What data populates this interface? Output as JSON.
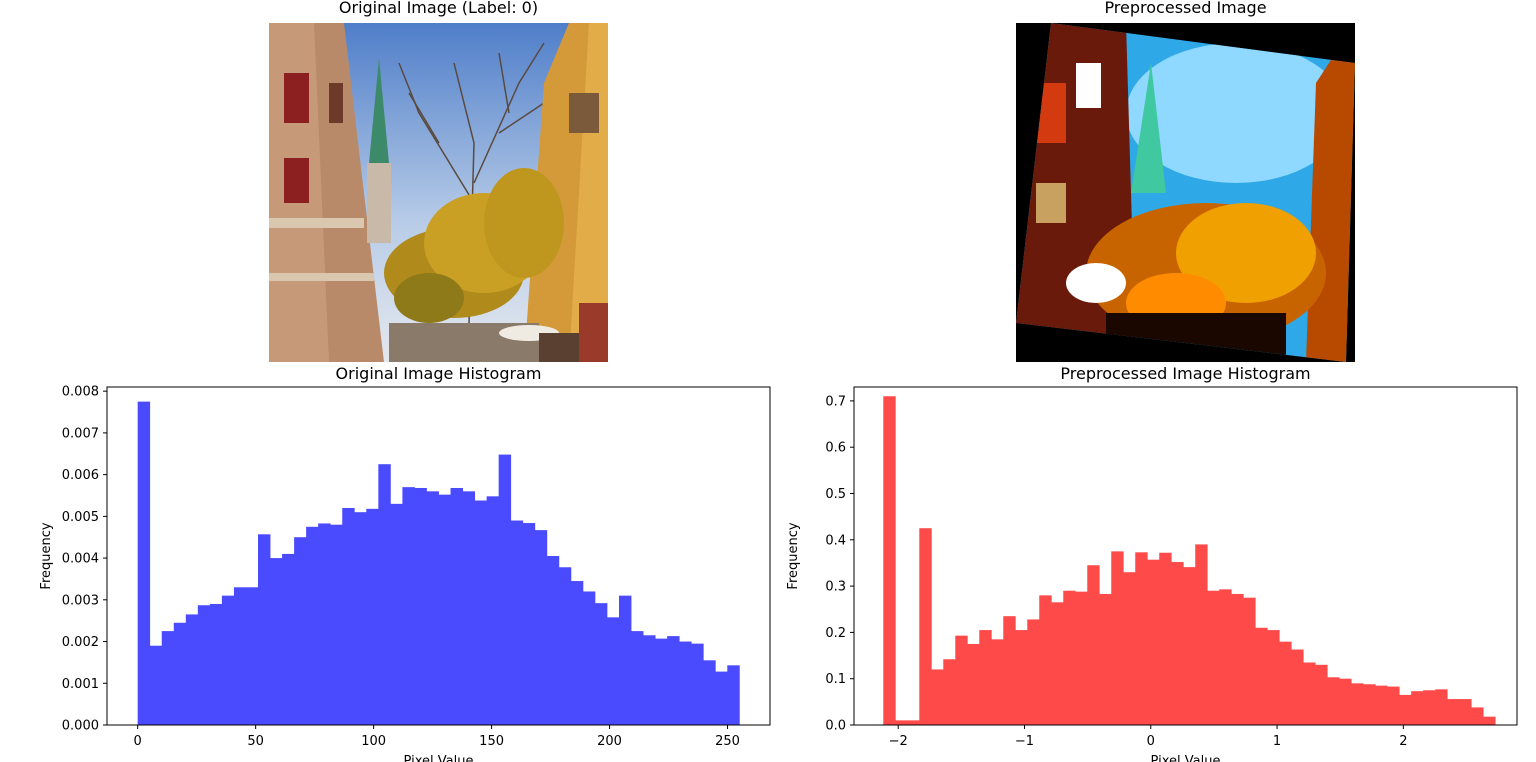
{
  "panels": {
    "original_title": "Original Image (Label: 0)",
    "preprocessed_title": "Preprocessed Image"
  },
  "colors": {
    "original_bars": "#4a4aff",
    "preprocessed_bars": "#ff4a4a"
  },
  "chart_data": [
    {
      "type": "bar",
      "title": "Original Image Histogram",
      "xlabel": "Pixel Value",
      "ylabel": "Frequency",
      "xlim": [
        -13,
        268
      ],
      "ylim": [
        0,
        0.0081
      ],
      "xticks": [
        0,
        50,
        100,
        150,
        200,
        250
      ],
      "xtick_labels": [
        "0",
        "50",
        "100",
        "150",
        "200",
        "250"
      ],
      "yticks": [
        0,
        0.001,
        0.002,
        0.003,
        0.004,
        0.005,
        0.006,
        0.007,
        0.008
      ],
      "ytick_labels": [
        "0.000",
        "0.001",
        "0.002",
        "0.003",
        "0.004",
        "0.005",
        "0.006",
        "0.007",
        "0.008"
      ],
      "bin_start": 0,
      "bin_width": 5.1,
      "values": [
        0.00775,
        0.0019,
        0.00225,
        0.00245,
        0.00265,
        0.00287,
        0.0029,
        0.0031,
        0.0033,
        0.0033,
        0.00457,
        0.004,
        0.0041,
        0.0045,
        0.00475,
        0.00483,
        0.0048,
        0.0052,
        0.0051,
        0.00518,
        0.00625,
        0.0053,
        0.0057,
        0.00568,
        0.0056,
        0.00552,
        0.00568,
        0.0056,
        0.00538,
        0.00548,
        0.00648,
        0.0049,
        0.00484,
        0.00467,
        0.00405,
        0.00378,
        0.00345,
        0.0032,
        0.00292,
        0.00258,
        0.0031,
        0.00225,
        0.00215,
        0.00207,
        0.00213,
        0.002,
        0.00195,
        0.00155,
        0.00128,
        0.00143
      ],
      "grid": false,
      "legend": "none"
    },
    {
      "type": "bar",
      "title": "Preprocessed Image Histogram",
      "xlabel": "Pixel Value",
      "ylabel": "Frequency",
      "xlim": [
        -2.35,
        2.9
      ],
      "ylim": [
        0,
        0.73
      ],
      "xticks": [
        -2,
        -1,
        0,
        1,
        2
      ],
      "xtick_labels": [
        "−2",
        "−1",
        "0",
        "1",
        "2"
      ],
      "yticks": [
        0,
        0.1,
        0.2,
        0.3,
        0.4,
        0.5,
        0.6,
        0.7
      ],
      "ytick_labels": [
        "0.0",
        "0.1",
        "0.2",
        "0.3",
        "0.4",
        "0.5",
        "0.6",
        "0.7"
      ],
      "bin_start": -2.118,
      "bin_width": 0.095,
      "values": [
        0.71,
        0.01,
        0.01,
        0.425,
        0.12,
        0.142,
        0.193,
        0.175,
        0.205,
        0.185,
        0.235,
        0.205,
        0.228,
        0.28,
        0.265,
        0.29,
        0.288,
        0.345,
        0.283,
        0.375,
        0.33,
        0.373,
        0.357,
        0.372,
        0.352,
        0.341,
        0.39,
        0.29,
        0.293,
        0.283,
        0.275,
        0.21,
        0.205,
        0.18,
        0.163,
        0.135,
        0.13,
        0.103,
        0.1,
        0.09,
        0.088,
        0.085,
        0.083,
        0.065,
        0.073,
        0.075,
        0.077,
        0.056,
        0.056,
        0.038,
        0.018
      ],
      "grid": false,
      "legend": "none"
    }
  ]
}
